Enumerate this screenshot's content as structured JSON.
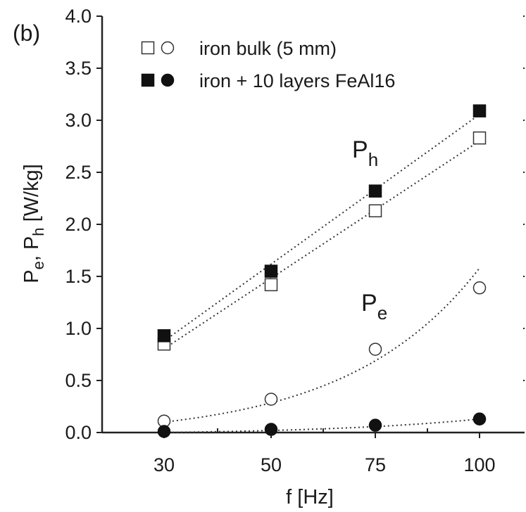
{
  "panel_label": "(b)",
  "chart_data": {
    "type": "scatter",
    "xlabel": "f [Hz]",
    "ylabel": "Pe, Ph [W/kg]",
    "ylabel_parts": {
      "p1": "P",
      "s1": "e",
      "mid": ", P",
      "s2": "h",
      "unit": " [W/kg]"
    },
    "x": [
      30,
      50,
      75,
      100
    ],
    "x_ticks": [
      "30",
      "50",
      "75",
      "100"
    ],
    "ylim": [
      0,
      4
    ],
    "y_ticks": [
      "0.0",
      "0.5",
      "1.0",
      "1.5",
      "2.0",
      "2.5",
      "3.0",
      "3.5",
      "4.0"
    ],
    "grid": false,
    "legend_position": "top-left",
    "legend": [
      {
        "label": "iron bulk (5 mm)",
        "markers": [
          "open-square",
          "open-circle"
        ],
        "color": "#1a1a1a"
      },
      {
        "label": "iron + 10 layers FeAl16",
        "markers": [
          "filled-square",
          "filled-circle"
        ],
        "color": "#1a1a1a"
      }
    ],
    "series": [
      {
        "name": "Ph",
        "group": "iron bulk (5 mm)",
        "marker": "open-square",
        "values": [
          0.85,
          1.42,
          2.13,
          2.83
        ]
      },
      {
        "name": "Ph",
        "group": "iron + 10 layers FeAl16",
        "marker": "filled-square",
        "values": [
          0.93,
          1.55,
          2.32,
          3.09
        ]
      },
      {
        "name": "Pe",
        "group": "iron bulk (5 mm)",
        "marker": "open-circle",
        "values": [
          0.11,
          0.32,
          0.8,
          1.39
        ]
      },
      {
        "name": "Pe",
        "group": "iron + 10 layers FeAl16",
        "marker": "filled-circle",
        "values": [
          0.01,
          0.03,
          0.07,
          0.13
        ]
      }
    ],
    "annotations": [
      {
        "main": "P",
        "sub": "h"
      },
      {
        "main": "P",
        "sub": "e"
      }
    ]
  }
}
